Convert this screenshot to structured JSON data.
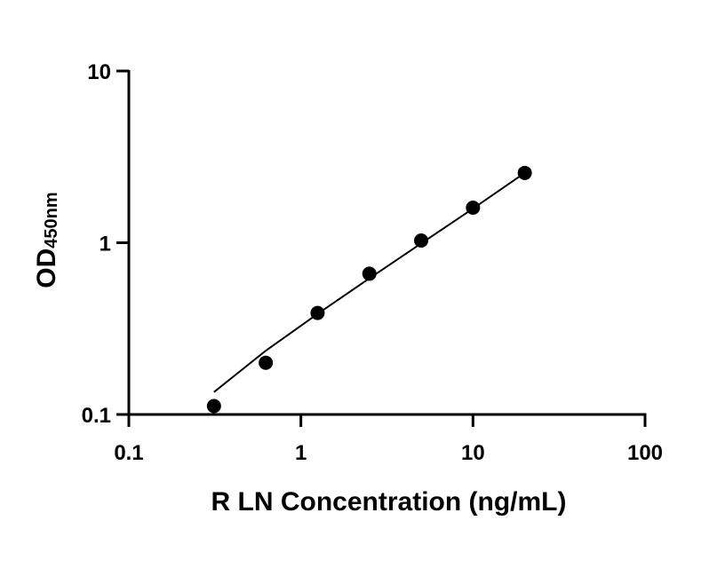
{
  "chart_data": {
    "type": "scatter",
    "title": "",
    "xlabel": "R LN Concentration (ng/mL)",
    "ylabel": {
      "main": "OD",
      "subscript": "450nm"
    },
    "x_scale": "log",
    "y_scale": "log",
    "xlim": [
      0.1,
      100
    ],
    "ylim": [
      0.1,
      10
    ],
    "x_ticks": [
      {
        "value": 0.1,
        "label": "0.1"
      },
      {
        "value": 1,
        "label": "1"
      },
      {
        "value": 10,
        "label": "10"
      },
      {
        "value": 100,
        "label": "100"
      }
    ],
    "y_ticks": [
      {
        "value": 0.1,
        "label": "0.1"
      },
      {
        "value": 1,
        "label": "1"
      },
      {
        "value": 10,
        "label": "10"
      }
    ],
    "grid": false,
    "legend": "none",
    "marker_color": "#000000",
    "series": [
      {
        "x": [
          0.3125,
          0.625,
          1.25,
          2.5,
          5,
          10,
          20
        ],
        "y": [
          0.112,
          0.2,
          0.39,
          0.66,
          1.03,
          1.6,
          2.55
        ]
      }
    ],
    "fit_curve": {
      "type": "power",
      "x": [
        0.3125,
        0.625,
        1.25,
        2.5,
        5,
        10,
        20
      ],
      "y": [
        0.135,
        0.235,
        0.385,
        0.62,
        0.99,
        1.58,
        2.55
      ],
      "color": "#000000"
    }
  }
}
